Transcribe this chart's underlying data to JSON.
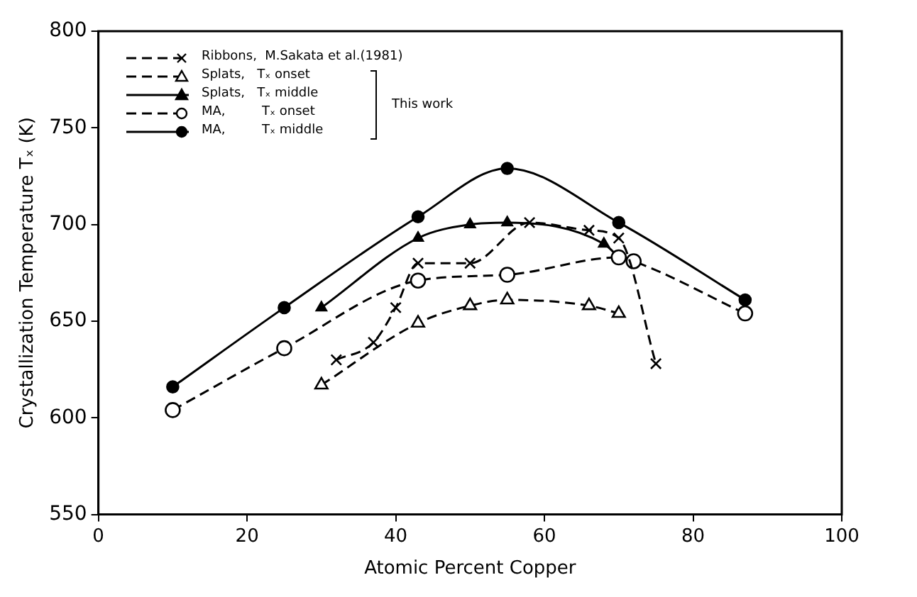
{
  "chart_data": {
    "type": "line",
    "xlabel": "Atomic Percent Copper",
    "ylabel": "Crystallization Temperature Tₓ (K)",
    "xlim": [
      0,
      100
    ],
    "xticks": [
      0,
      20,
      40,
      60,
      80,
      100
    ],
    "ylim": [
      550,
      800
    ],
    "yticks": [
      550,
      600,
      650,
      700,
      750,
      800
    ],
    "grid": false,
    "legend": "top left",
    "annotations": [
      "This work"
    ],
    "series": [
      {
        "name": "Ribbons,  M.Sakata et al.(1981)",
        "color": "#000000",
        "marker": "cross",
        "line_style": "dashed",
        "x": [
          32,
          37,
          40,
          43,
          50,
          58,
          66,
          70,
          75
        ],
        "values": [
          630,
          639,
          657,
          680,
          680,
          701,
          697,
          693,
          628
        ]
      },
      {
        "name": "Splats,   Tₓ onset",
        "color": "#000000",
        "marker": "triangle",
        "line_style": "dashed",
        "x": [
          30,
          43,
          50,
          55,
          66,
          70
        ],
        "values": [
          617,
          649,
          658,
          661,
          658,
          654
        ]
      },
      {
        "name": "Splats,   Tₓ middle",
        "color": "#000000",
        "marker": "triangle",
        "line_style": "solid",
        "x": [
          30,
          43,
          50,
          55,
          68,
          70
        ],
        "values": [
          657,
          693,
          700,
          701,
          690,
          683
        ]
      },
      {
        "name": "MA,         Tₓ onset",
        "color": "#000000",
        "marker": "circle",
        "line_style": "dashed",
        "x": [
          10,
          25,
          43,
          55,
          70,
          72,
          87
        ],
        "values": [
          604,
          636,
          671,
          674,
          683,
          681,
          654
        ]
      },
      {
        "name": "MA,         Tₓ middle",
        "color": "#000000",
        "marker": "circle",
        "line_style": "solid",
        "x": [
          10,
          25,
          43,
          55,
          70,
          87
        ],
        "values": [
          616,
          657,
          704,
          729,
          701,
          661
        ]
      }
    ]
  }
}
